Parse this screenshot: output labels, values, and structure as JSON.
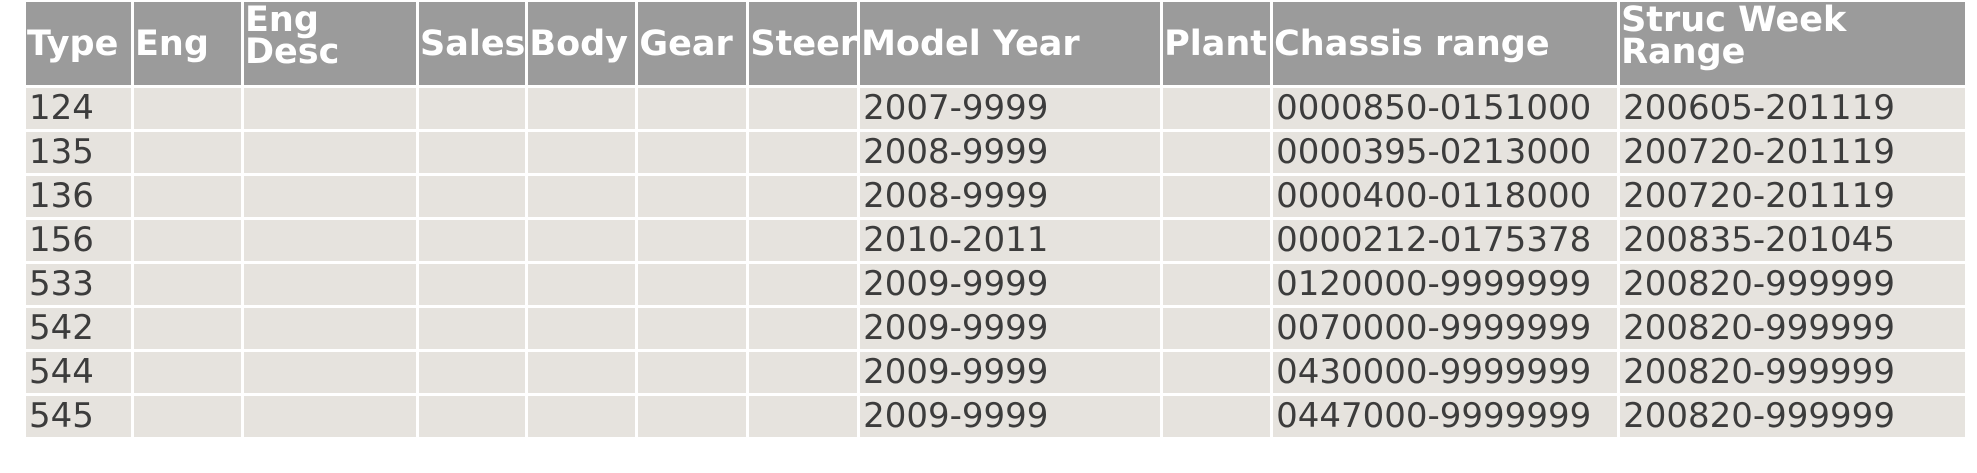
{
  "table": {
    "headers": {
      "type": "Type",
      "eng": "Eng",
      "eng_desc": "Eng Desc",
      "sales": "Sales",
      "body": "Body",
      "gear": "Gear",
      "steer": "Steer",
      "model_year": "Model Year",
      "plant": "Plant",
      "chassis_range": "Chassis range",
      "struc_week_range": "Struc Week Range"
    },
    "rows": [
      {
        "type": "124",
        "eng": "",
        "eng_desc": "",
        "sales": "",
        "body": "",
        "gear": "",
        "steer": "",
        "model_year": "2007-9999",
        "plant": "",
        "chassis_range": "0000850-0151000",
        "struc_week_range": "200605-201119"
      },
      {
        "type": "135",
        "eng": "",
        "eng_desc": "",
        "sales": "",
        "body": "",
        "gear": "",
        "steer": "",
        "model_year": "2008-9999",
        "plant": "",
        "chassis_range": "0000395-0213000",
        "struc_week_range": "200720-201119"
      },
      {
        "type": "136",
        "eng": "",
        "eng_desc": "",
        "sales": "",
        "body": "",
        "gear": "",
        "steer": "",
        "model_year": "2008-9999",
        "plant": "",
        "chassis_range": "0000400-0118000",
        "struc_week_range": "200720-201119"
      },
      {
        "type": "156",
        "eng": "",
        "eng_desc": "",
        "sales": "",
        "body": "",
        "gear": "",
        "steer": "",
        "model_year": "2010-2011",
        "plant": "",
        "chassis_range": "0000212-0175378",
        "struc_week_range": "200835-201045"
      },
      {
        "type": "533",
        "eng": "",
        "eng_desc": "",
        "sales": "",
        "body": "",
        "gear": "",
        "steer": "",
        "model_year": "2009-9999",
        "plant": "",
        "chassis_range": "0120000-9999999",
        "struc_week_range": "200820-999999"
      },
      {
        "type": "542",
        "eng": "",
        "eng_desc": "",
        "sales": "",
        "body": "",
        "gear": "",
        "steer": "",
        "model_year": "2009-9999",
        "plant": "",
        "chassis_range": "0070000-9999999",
        "struc_week_range": "200820-999999"
      },
      {
        "type": "544",
        "eng": "",
        "eng_desc": "",
        "sales": "",
        "body": "",
        "gear": "",
        "steer": "",
        "model_year": "2009-9999",
        "plant": "",
        "chassis_range": "0430000-9999999",
        "struc_week_range": "200820-999999"
      },
      {
        "type": "545",
        "eng": "",
        "eng_desc": "",
        "sales": "",
        "body": "",
        "gear": "",
        "steer": "",
        "model_year": "2009-9999",
        "plant": "",
        "chassis_range": "0447000-9999999",
        "struc_week_range": "200820-999999"
      }
    ]
  }
}
